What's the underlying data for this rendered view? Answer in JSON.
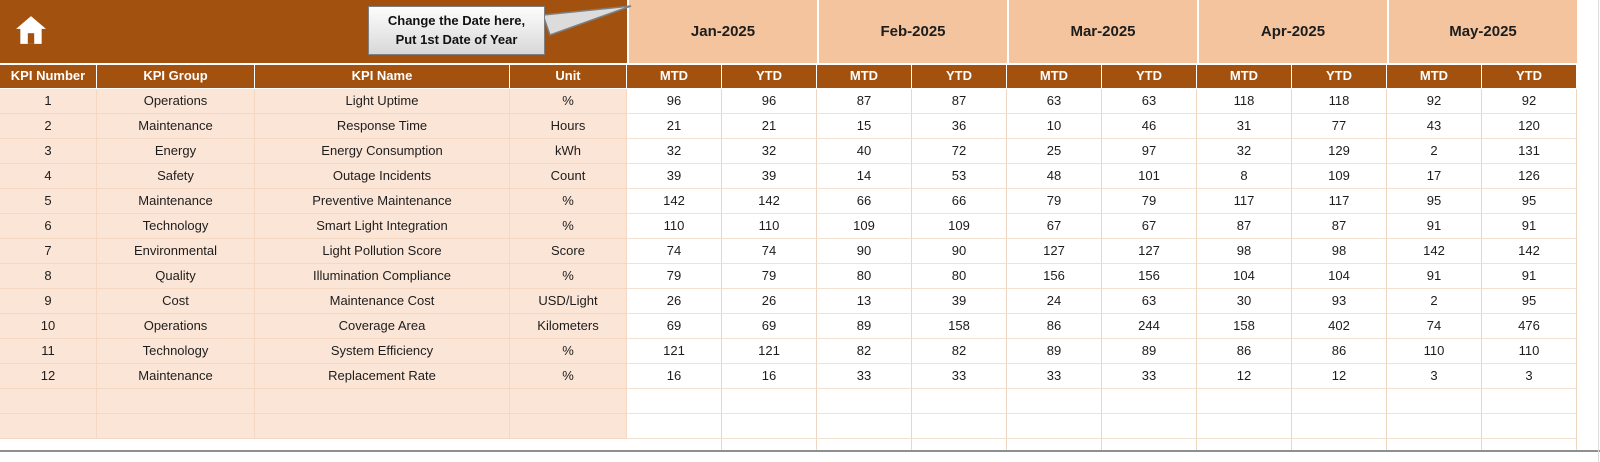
{
  "colors": {
    "brown": "#A3510E",
    "salmon": "#F3C49E",
    "peach": "#FBE5D6"
  },
  "callout": {
    "line1": "Change the Date here,",
    "line2": "Put 1st Date of Year"
  },
  "months": [
    "Jan-2025",
    "Feb-2025",
    "Mar-2025",
    "Apr-2025",
    "May-2025"
  ],
  "header": {
    "kpi_number": "KPI Number",
    "kpi_group": "KPI Group",
    "kpi_name": "KPI Name",
    "unit": "Unit",
    "mtd": "MTD",
    "ytd": "YTD"
  },
  "rows": [
    {
      "number": "1",
      "group": "Operations",
      "name": "Light Uptime",
      "unit": "%",
      "values": [
        96,
        96,
        87,
        87,
        63,
        63,
        118,
        118,
        92,
        92
      ]
    },
    {
      "number": "2",
      "group": "Maintenance",
      "name": "Response Time",
      "unit": "Hours",
      "values": [
        21,
        21,
        15,
        36,
        10,
        46,
        31,
        77,
        43,
        120
      ]
    },
    {
      "number": "3",
      "group": "Energy",
      "name": "Energy Consumption",
      "unit": "kWh",
      "values": [
        32,
        32,
        40,
        72,
        25,
        97,
        32,
        129,
        2,
        131
      ]
    },
    {
      "number": "4",
      "group": "Safety",
      "name": "Outage Incidents",
      "unit": "Count",
      "values": [
        39,
        39,
        14,
        53,
        48,
        101,
        8,
        109,
        17,
        126
      ]
    },
    {
      "number": "5",
      "group": "Maintenance",
      "name": "Preventive Maintenance",
      "unit": "%",
      "values": [
        142,
        142,
        66,
        66,
        79,
        79,
        117,
        117,
        95,
        95
      ]
    },
    {
      "number": "6",
      "group": "Technology",
      "name": "Smart Light Integration",
      "unit": "%",
      "values": [
        110,
        110,
        109,
        109,
        67,
        67,
        87,
        87,
        91,
        91
      ]
    },
    {
      "number": "7",
      "group": "Environmental",
      "name": "Light Pollution Score",
      "unit": "Score",
      "values": [
        74,
        74,
        90,
        90,
        127,
        127,
        98,
        98,
        142,
        142
      ]
    },
    {
      "number": "8",
      "group": "Quality",
      "name": "Illumination Compliance",
      "unit": "%",
      "values": [
        79,
        79,
        80,
        80,
        156,
        156,
        104,
        104,
        91,
        91
      ]
    },
    {
      "number": "9",
      "group": "Cost",
      "name": "Maintenance Cost",
      "unit": "USD/Light",
      "values": [
        26,
        26,
        13,
        39,
        24,
        63,
        30,
        93,
        2,
        95
      ]
    },
    {
      "number": "10",
      "group": "Operations",
      "name": "Coverage Area",
      "unit": "Kilometers",
      "values": [
        69,
        69,
        89,
        158,
        86,
        244,
        158,
        402,
        74,
        476
      ]
    },
    {
      "number": "11",
      "group": "Technology",
      "name": "System Efficiency",
      "unit": "%",
      "values": [
        121,
        121,
        82,
        82,
        89,
        89,
        86,
        86,
        110,
        110
      ]
    },
    {
      "number": "12",
      "group": "Maintenance",
      "name": "Replacement Rate",
      "unit": "%",
      "values": [
        16,
        16,
        33,
        33,
        33,
        33,
        12,
        12,
        3,
        3
      ]
    }
  ]
}
